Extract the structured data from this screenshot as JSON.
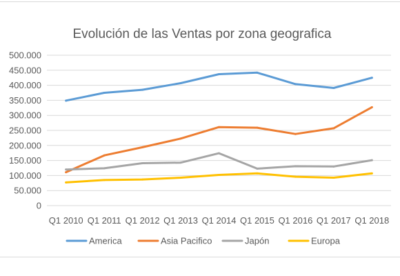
{
  "chart_data": {
    "type": "line",
    "title": "Evolución de las Ventas por zona geografica",
    "xlabel": "",
    "ylabel": "",
    "categories": [
      "Q1 2010",
      "Q1 2011",
      "Q1 2012",
      "Q1 2013",
      "Q1 2014",
      "Q1 2015",
      "Q1 2016",
      "Q1 2017",
      "Q1 2018"
    ],
    "ylim": [
      0,
      500000
    ],
    "y_ticks": [
      0,
      50000,
      100000,
      150000,
      200000,
      250000,
      300000,
      350000,
      400000,
      450000,
      500000
    ],
    "y_tick_labels": [
      "0",
      "50.000",
      "100.000",
      "150.000",
      "200.000",
      "250.000",
      "300.000",
      "350.000",
      "400.000",
      "450.000",
      "500.000"
    ],
    "grid": true,
    "legend_position": "bottom",
    "series": [
      {
        "name": "America",
        "color": "#5B9BD5",
        "values": [
          349000,
          375000,
          385000,
          407000,
          437000,
          442000,
          404000,
          391000,
          425000
        ]
      },
      {
        "name": "Asia Pacifico",
        "color": "#ED7D31",
        "values": [
          111000,
          167000,
          194000,
          223000,
          261000,
          259000,
          238000,
          257000,
          327000
        ]
      },
      {
        "name": "Japón",
        "color": "#A5A5A5",
        "values": [
          120000,
          124000,
          141000,
          143000,
          174000,
          123000,
          131000,
          130000,
          151000
        ]
      },
      {
        "name": "Europa",
        "color": "#FFC000",
        "values": [
          77000,
          85000,
          87000,
          93000,
          102000,
          107000,
          96000,
          93000,
          107000
        ]
      }
    ]
  }
}
